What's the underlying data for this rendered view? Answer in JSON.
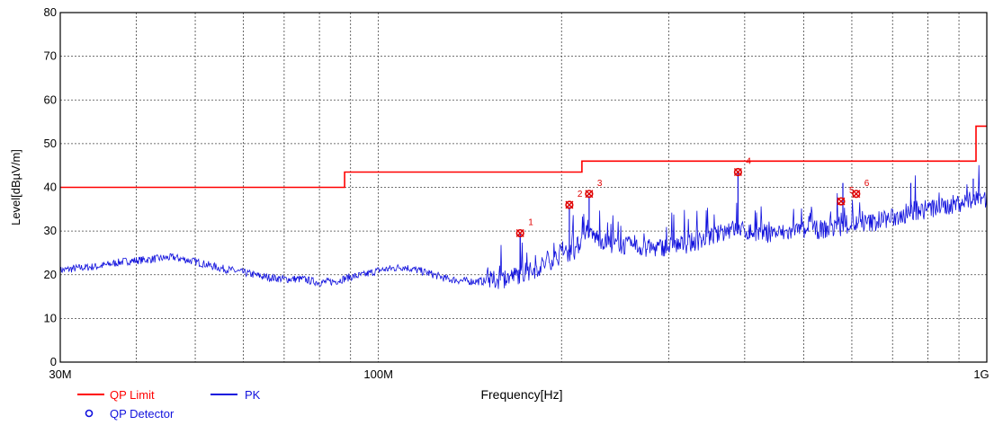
{
  "chart_data": {
    "type": "line",
    "xlabel": "Frequency[Hz]",
    "ylabel": "Level[dBµV/m]",
    "x_scale": "log",
    "xlim": [
      30,
      1000
    ],
    "ylim": [
      0,
      80
    ],
    "grid": true,
    "x_ticks": [
      {
        "value": 30,
        "label": "30M"
      },
      {
        "value": 100,
        "label": "100M"
      },
      {
        "value": 1000,
        "label": "1G"
      }
    ],
    "y_ticks": [
      0,
      10,
      20,
      30,
      40,
      50,
      60,
      70,
      80
    ],
    "legend_position": "bottom-left",
    "series": [
      {
        "name": "QP Limit",
        "color": "#ff0000",
        "style": "step",
        "x": [
          30,
          88,
          88,
          216,
          216,
          960,
          960,
          1000
        ],
        "y": [
          40,
          40,
          43.5,
          43.5,
          46,
          46,
          54,
          54
        ]
      },
      {
        "name": "PK",
        "color": "#1111dd",
        "style": "noisy",
        "x": [
          30,
          32,
          35,
          38,
          42,
          46,
          50,
          55,
          60,
          65,
          70,
          75,
          80,
          85,
          90,
          95,
          100,
          110,
          120,
          130,
          140,
          150,
          160,
          170,
          180,
          190,
          200,
          210,
          216,
          225,
          240,
          260,
          280,
          300,
          320,
          340,
          360,
          380,
          400,
          420,
          440,
          460,
          500,
          550,
          600,
          650,
          700,
          750,
          800,
          850,
          900,
          950,
          1000
        ],
        "y": [
          21,
          21.5,
          22,
          23,
          23.5,
          24,
          23,
          21.5,
          20.5,
          19.5,
          19,
          19,
          18.2,
          18.5,
          19.5,
          20,
          21,
          21.8,
          20.5,
          19,
          18.5,
          18.5,
          19,
          20,
          21,
          23,
          24.5,
          25.5,
          28,
          29,
          27,
          26.5,
          26,
          26.5,
          27,
          28,
          29,
          30.5,
          30,
          29.5,
          29.5,
          29.5,
          30,
          30.5,
          31.5,
          32,
          33,
          34,
          35,
          35.5,
          36.5,
          37,
          37.5
        ],
        "spikes": [
          {
            "x": 171,
            "y": 29.5
          },
          {
            "x": 206,
            "y": 35.5
          },
          {
            "x": 222,
            "y": 38
          },
          {
            "x": 390,
            "y": 43.5
          },
          {
            "x": 580,
            "y": 41
          },
          {
            "x": 750,
            "y": 41
          },
          {
            "x": 950,
            "y": 42
          }
        ]
      },
      {
        "name": "QP Detector",
        "color": "#1111dd",
        "style": "marker",
        "x": [],
        "y": []
      }
    ],
    "markers": [
      {
        "label": "1",
        "x": 171,
        "y": 29.5
      },
      {
        "label": "2",
        "x": 206,
        "y": 36
      },
      {
        "label": "3",
        "x": 222,
        "y": 38.5
      },
      {
        "label": "4",
        "x": 390,
        "y": 43.5
      },
      {
        "label": "5",
        "x": 576,
        "y": 36.8
      },
      {
        "label": "6",
        "x": 610,
        "y": 38.5
      }
    ]
  }
}
